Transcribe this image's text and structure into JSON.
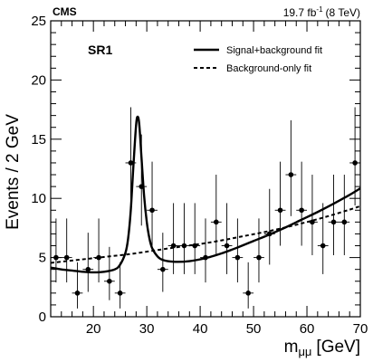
{
  "chart_data": {
    "type": "scatter",
    "experiment_label": "CMS",
    "lumi_label": "19.7 fb",
    "lumi_superscript": "-1",
    "lumi_energy": "(8 TeV)",
    "region_label": "SR1",
    "xlabel_main": "m",
    "xlabel_sub": "μμ",
    "xlabel_unit": "[GeV]",
    "ylabel": "Events / 2 GeV",
    "xlim": [
      12,
      70
    ],
    "ylim": [
      0,
      25
    ],
    "xticks": [
      20,
      30,
      40,
      50,
      60,
      70
    ],
    "yticks": [
      0,
      5,
      10,
      15,
      20,
      25
    ],
    "legend_position": "top-right",
    "legend": [
      {
        "label": "Signal+background fit",
        "style": "solid"
      },
      {
        "label": "Background-only fit",
        "style": "dashed"
      }
    ],
    "points": [
      {
        "x": 13,
        "y": 5,
        "err_lo": 2.1,
        "err_hi": 3.3
      },
      {
        "x": 15,
        "y": 5,
        "err_lo": 2.1,
        "err_hi": 3.3
      },
      {
        "x": 17,
        "y": 2,
        "err_lo": 1.3,
        "err_hi": 2.6
      },
      {
        "x": 19,
        "y": 4,
        "err_lo": 1.9,
        "err_hi": 3.1
      },
      {
        "x": 21,
        "y": 5,
        "err_lo": 2.1,
        "err_hi": 3.3
      },
      {
        "x": 23,
        "y": 3,
        "err_lo": 1.6,
        "err_hi": 2.9
      },
      {
        "x": 25,
        "y": 2,
        "err_lo": 1.3,
        "err_hi": 2.6
      },
      {
        "x": 27,
        "y": 13,
        "err_lo": 3.6,
        "err_hi": 4.7
      },
      {
        "x": 29,
        "y": 11,
        "err_lo": 3.3,
        "err_hi": 4.4
      },
      {
        "x": 31,
        "y": 9,
        "err_lo": 3.0,
        "err_hi": 4.1
      },
      {
        "x": 33,
        "y": 4,
        "err_lo": 1.9,
        "err_hi": 3.1
      },
      {
        "x": 35,
        "y": 6,
        "err_lo": 2.4,
        "err_hi": 3.6
      },
      {
        "x": 37,
        "y": 6,
        "err_lo": 2.4,
        "err_hi": 3.6
      },
      {
        "x": 39,
        "y": 6,
        "err_lo": 2.4,
        "err_hi": 3.6
      },
      {
        "x": 41,
        "y": 5,
        "err_lo": 2.1,
        "err_hi": 3.3
      },
      {
        "x": 43,
        "y": 8,
        "err_lo": 2.8,
        "err_hi": 4.0
      },
      {
        "x": 45,
        "y": 6,
        "err_lo": 2.4,
        "err_hi": 3.6
      },
      {
        "x": 47,
        "y": 5,
        "err_lo": 2.1,
        "err_hi": 3.3
      },
      {
        "x": 49,
        "y": 2,
        "err_lo": 1.3,
        "err_hi": 2.6
      },
      {
        "x": 51,
        "y": 5,
        "err_lo": 2.1,
        "err_hi": 3.3
      },
      {
        "x": 53,
        "y": 7,
        "err_lo": 2.6,
        "err_hi": 3.8
      },
      {
        "x": 55,
        "y": 9,
        "err_lo": 3.0,
        "err_hi": 4.1
      },
      {
        "x": 57,
        "y": 12,
        "err_lo": 3.5,
        "err_hi": 4.6
      },
      {
        "x": 59,
        "y": 9,
        "err_lo": 3.0,
        "err_hi": 4.1
      },
      {
        "x": 61,
        "y": 8,
        "err_lo": 2.8,
        "err_hi": 4.0
      },
      {
        "x": 63,
        "y": 6,
        "err_lo": 2.4,
        "err_hi": 3.6
      },
      {
        "x": 65,
        "y": 8,
        "err_lo": 2.8,
        "err_hi": 4.0
      },
      {
        "x": 67,
        "y": 8,
        "err_lo": 2.8,
        "err_hi": 4.0
      },
      {
        "x": 69,
        "y": 13,
        "err_lo": 3.6,
        "err_hi": 4.7
      }
    ],
    "signal_plus_background_fit": {
      "x": [
        12,
        14,
        16,
        18,
        20,
        22,
        24,
        25,
        26,
        26.5,
        27,
        27.5,
        28,
        28.3,
        28.6,
        29,
        29.5,
        30,
        30.5,
        31,
        32,
        33,
        35,
        38,
        41,
        44,
        47,
        50,
        53,
        56,
        59,
        62,
        65,
        68,
        70
      ],
      "y": [
        4.15,
        4.0,
        3.9,
        3.8,
        3.75,
        3.8,
        4.0,
        4.4,
        5.4,
        6.6,
        9.0,
        12.8,
        16.2,
        16.9,
        16.2,
        13.5,
        10.2,
        8.0,
        6.6,
        5.8,
        5.1,
        4.8,
        4.65,
        4.7,
        4.95,
        5.35,
        5.85,
        6.4,
        6.95,
        7.55,
        8.2,
        8.85,
        9.55,
        10.3,
        10.85
      ]
    },
    "background_only_fit": {
      "x": [
        12,
        15,
        18,
        21,
        24,
        27,
        30,
        33,
        36,
        40,
        44,
        48,
        52,
        56,
        60,
        64,
        68,
        70
      ],
      "y": [
        4.55,
        4.7,
        4.85,
        5.0,
        5.15,
        5.3,
        5.5,
        5.7,
        5.9,
        6.15,
        6.45,
        6.8,
        7.15,
        7.55,
        8.0,
        8.5,
        9.05,
        9.35
      ]
    }
  }
}
